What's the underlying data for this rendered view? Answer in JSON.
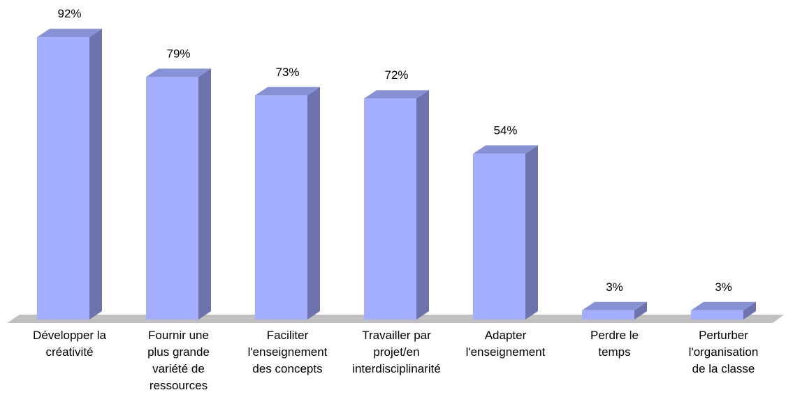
{
  "chart_data": {
    "type": "bar",
    "title": "",
    "xlabel": "",
    "ylabel": "",
    "ylim": [
      0,
      100
    ],
    "grid": false,
    "legend": "none",
    "categories": [
      [
        "Développer la",
        "créativité"
      ],
      [
        "Fournir une",
        "plus grande",
        "variété de",
        "ressources"
      ],
      [
        "Faciliter",
        "l'enseignement",
        "des concepts"
      ],
      [
        "Travailler par",
        "projet/en",
        "interdisciplinarité"
      ],
      [
        "Adapter",
        "l'enseignement"
      ],
      [
        "Perdre le",
        "temps"
      ],
      [
        "Perturber",
        "l'organisation",
        "de la classe"
      ]
    ],
    "values": [
      92,
      79,
      73,
      72,
      54,
      3,
      3
    ],
    "value_labels": [
      "92%",
      "79%",
      "73%",
      "72%",
      "54%",
      "3%",
      "3%"
    ],
    "colors": {
      "bar_front": "#a3aefe",
      "bar_side": "#6c73ad",
      "bar_top": "#8791d6",
      "floor": "#c0c0c0"
    }
  }
}
